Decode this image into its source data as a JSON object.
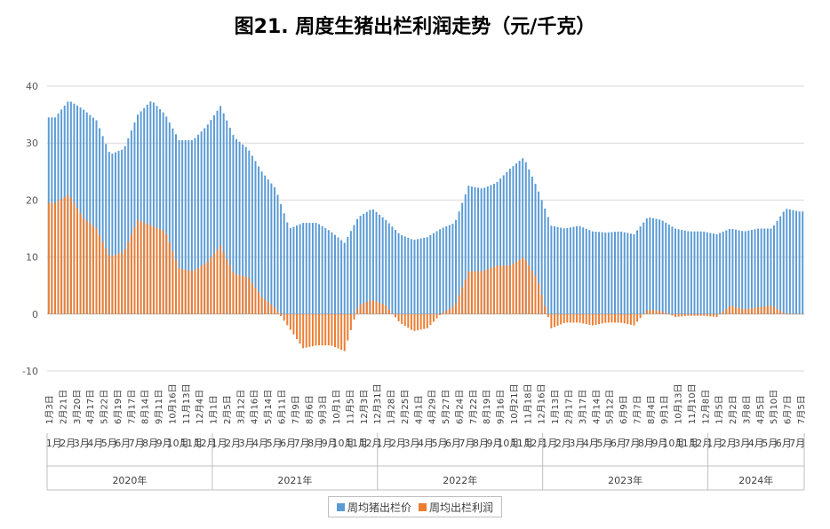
{
  "title": "图21. 周度生猪出栏利润走势（元/千克）",
  "colors": {
    "price": "#5b9bd5",
    "profit": "#ed7d31",
    "grid": "#d9d9d9",
    "axis": "#bfbfbf"
  },
  "chart_data": {
    "type": "bar",
    "title": "图21. 周度生猪出栏利润走势（元/千克）",
    "ylim": [
      -10,
      40
    ],
    "yticks": [
      -10,
      0,
      10,
      20,
      30,
      40
    ],
    "grid": "horizontal",
    "legend_position": "bottom",
    "week_labels": [
      "1月3日",
      "2月21日",
      "3月20日",
      "4月17日",
      "5月22日",
      "6月19日",
      "7月17日",
      "8月14日",
      "9月11日",
      "10月16日",
      "11月13日",
      "12月4日",
      "1月1日",
      "2月5日",
      "3月12日",
      "4月16日",
      "5月14日",
      "6月11日",
      "7月9日",
      "8月6日",
      "9月3日",
      "10月1日",
      "11月5日",
      "12月3日",
      "12月31日",
      "1月28日",
      "2月25日",
      "4月1日",
      "4月29日",
      "5月27日",
      "6月24日",
      "7月22日",
      "8月19日",
      "9月16日",
      "10月21日",
      "11月18日",
      "12月16日",
      "1月13日",
      "2月17日",
      "3月17日",
      "4月14日",
      "5月12日",
      "6月9日",
      "7月7日",
      "8月4日",
      "9月1日",
      "10月13日",
      "11月10日",
      "12月8日",
      "1月5日",
      "2月2日",
      "3月8日",
      "4月5日",
      "5月10日",
      "6月7日",
      "7月5日"
    ],
    "month_labels": [
      {
        "year": "2020年",
        "months": [
          "1月",
          "2月",
          "3月",
          "4月",
          "5月",
          "6月",
          "7月",
          "8月",
          "9月",
          "10月",
          "11月",
          "12月"
        ]
      },
      {
        "year": "2021年",
        "months": [
          "1月",
          "2月",
          "3月",
          "4月",
          "5月",
          "6月",
          "7月",
          "8月",
          "9月",
          "10月",
          "11月",
          "12月"
        ]
      },
      {
        "year": "2022年",
        "months": [
          "1月",
          "2月",
          "3月",
          "4月",
          "5月",
          "6月",
          "7月",
          "8月",
          "9月",
          "10月",
          "11月",
          "12月"
        ]
      },
      {
        "year": "2023年",
        "months": [
          "1月",
          "2月",
          "3月",
          "4月",
          "5月",
          "6月",
          "7月",
          "8月",
          "9月",
          "10月",
          "11月",
          "12月"
        ]
      },
      {
        "year": "2024年",
        "months": [
          "1月",
          "2月",
          "3月",
          "4月",
          "5月",
          "6月",
          "7月"
        ]
      }
    ],
    "year_labels": [
      "2020年",
      "2021年",
      "2022年",
      "2023年",
      "2024年"
    ],
    "series": [
      {
        "name": "周均猪出栏价",
        "control_points": [
          [
            "2020-01",
            34.5
          ],
          [
            "2020-02",
            37.5
          ],
          [
            "2020-03",
            36
          ],
          [
            "2020-04",
            34
          ],
          [
            "2020-05",
            28
          ],
          [
            "2020-06",
            29
          ],
          [
            "2020-07",
            35
          ],
          [
            "2020-08",
            37.5
          ],
          [
            "2020-09",
            35
          ],
          [
            "2020-10",
            30.5
          ],
          [
            "2020-11",
            30.5
          ],
          [
            "2020-12",
            33
          ],
          [
            "2021-01",
            36.5
          ],
          [
            "2021-02",
            31
          ],
          [
            "2021-03",
            29
          ],
          [
            "2021-04",
            25
          ],
          [
            "2021-05",
            22
          ],
          [
            "2021-06",
            15
          ],
          [
            "2021-07",
            16
          ],
          [
            "2021-08",
            16
          ],
          [
            "2021-09",
            14.5
          ],
          [
            "2021-10",
            12.5
          ],
          [
            "2021-11",
            17
          ],
          [
            "2021-12",
            18.5
          ],
          [
            "2022-01",
            16.5
          ],
          [
            "2022-02",
            14
          ],
          [
            "2022-03",
            13
          ],
          [
            "2022-04",
            13.5
          ],
          [
            "2022-05",
            15
          ],
          [
            "2022-06",
            16
          ],
          [
            "2022-07",
            22.5
          ],
          [
            "2022-08",
            22
          ],
          [
            "2022-09",
            23
          ],
          [
            "2022-10",
            25.5
          ],
          [
            "2022-11",
            27.5
          ],
          [
            "2022-12",
            22
          ],
          [
            "2023-01",
            15.5
          ],
          [
            "2023-02",
            15
          ],
          [
            "2023-03",
            15.5
          ],
          [
            "2023-04",
            14.5
          ],
          [
            "2023-05",
            14.3
          ],
          [
            "2023-06",
            14.5
          ],
          [
            "2023-07",
            14
          ],
          [
            "2023-08",
            17
          ],
          [
            "2023-09",
            16.5
          ],
          [
            "2023-10",
            15
          ],
          [
            "2023-11",
            14.5
          ],
          [
            "2023-12",
            14.5
          ],
          [
            "2024-01",
            14
          ],
          [
            "2024-02",
            15
          ],
          [
            "2024-03",
            14.5
          ],
          [
            "2024-04",
            15
          ],
          [
            "2024-05",
            15
          ],
          [
            "2024-06",
            18.5
          ],
          [
            "2024-07",
            18
          ]
        ]
      },
      {
        "name": "周均出栏利润",
        "control_points": [
          [
            "2020-01",
            19.5
          ],
          [
            "2020-02",
            21
          ],
          [
            "2020-03",
            17
          ],
          [
            "2020-04",
            15
          ],
          [
            "2020-05",
            10
          ],
          [
            "2020-06",
            11
          ],
          [
            "2020-07",
            16.5
          ],
          [
            "2020-08",
            15.5
          ],
          [
            "2020-09",
            14.5
          ],
          [
            "2020-10",
            8
          ],
          [
            "2020-11",
            7.5
          ],
          [
            "2020-12",
            9
          ],
          [
            "2021-01",
            12
          ],
          [
            "2021-02",
            7
          ],
          [
            "2021-03",
            6.5
          ],
          [
            "2021-04",
            3
          ],
          [
            "2021-05",
            1
          ],
          [
            "2021-06",
            -2.5
          ],
          [
            "2021-07",
            -6
          ],
          [
            "2021-08",
            -5.5
          ],
          [
            "2021-09",
            -5.5
          ],
          [
            "2021-10",
            -6.5
          ],
          [
            "2021-11",
            1.5
          ],
          [
            "2021-12",
            2.5
          ],
          [
            "2022-01",
            1.5
          ],
          [
            "2022-02",
            -1.5
          ],
          [
            "2022-03",
            -3
          ],
          [
            "2022-04",
            -2.5
          ],
          [
            "2022-05",
            0
          ],
          [
            "2022-06",
            1.5
          ],
          [
            "2022-07",
            7.5
          ],
          [
            "2022-08",
            7.5
          ],
          [
            "2022-09",
            8.5
          ],
          [
            "2022-10",
            8.5
          ],
          [
            "2022-11",
            10
          ],
          [
            "2022-12",
            6
          ],
          [
            "2023-01",
            -2.5
          ],
          [
            "2023-02",
            -1.5
          ],
          [
            "2023-03",
            -1.5
          ],
          [
            "2023-04",
            -2
          ],
          [
            "2023-05",
            -1.5
          ],
          [
            "2023-06",
            -1.5
          ],
          [
            "2023-07",
            -2
          ],
          [
            "2023-08",
            0.8
          ],
          [
            "2023-09",
            0.5
          ],
          [
            "2023-10",
            -0.5
          ],
          [
            "2023-11",
            -0.3
          ],
          [
            "2023-12",
            -0.3
          ],
          [
            "2024-01",
            -0.5
          ],
          [
            "2024-02",
            1.5
          ],
          [
            "2024-03",
            0.8
          ],
          [
            "2024-04",
            1.2
          ],
          [
            "2024-05",
            1.5
          ],
          [
            "2024-06",
            0
          ],
          [
            "2024-07",
            0
          ]
        ]
      }
    ]
  }
}
